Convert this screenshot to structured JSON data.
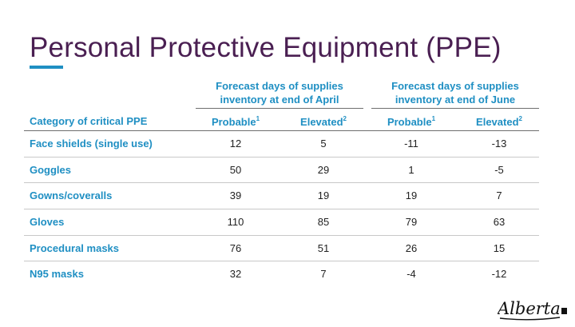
{
  "title": "Personal Protective Equipment (PPE)",
  "groups": {
    "april": {
      "line1": "Forecast days of supplies",
      "line2": "inventory at end of April"
    },
    "june": {
      "line1": "Forecast days of supplies",
      "line2": "inventory at end of June"
    }
  },
  "columns": {
    "category": "Category of critical PPE",
    "probable": "Probable",
    "probable_note": "1",
    "elevated": "Elevated",
    "elevated_note": "2"
  },
  "rows": [
    {
      "category": "Face shields (single use)",
      "apr_probable": "12",
      "apr_elevated": "5",
      "jun_probable": "-11",
      "jun_elevated": "-13"
    },
    {
      "category": "Goggles",
      "apr_probable": "50",
      "apr_elevated": "29",
      "jun_probable": "1",
      "jun_elevated": "-5"
    },
    {
      "category": "Gowns/coveralls",
      "apr_probable": "39",
      "apr_elevated": "19",
      "jun_probable": "19",
      "jun_elevated": "7"
    },
    {
      "category": "Gloves",
      "apr_probable": "110",
      "apr_elevated": "85",
      "jun_probable": "79",
      "jun_elevated": "63"
    },
    {
      "category": "Procedural masks",
      "apr_probable": "76",
      "apr_elevated": "51",
      "jun_probable": "26",
      "jun_elevated": "15"
    },
    {
      "category": "N95 masks",
      "apr_probable": "32",
      "apr_elevated": "7",
      "jun_probable": "-4",
      "jun_elevated": "-12"
    }
  ],
  "logo": {
    "text": "Alberta"
  },
  "colors": {
    "title": "#4a1f52",
    "accent": "#1f8fc3",
    "text": "#222222"
  }
}
